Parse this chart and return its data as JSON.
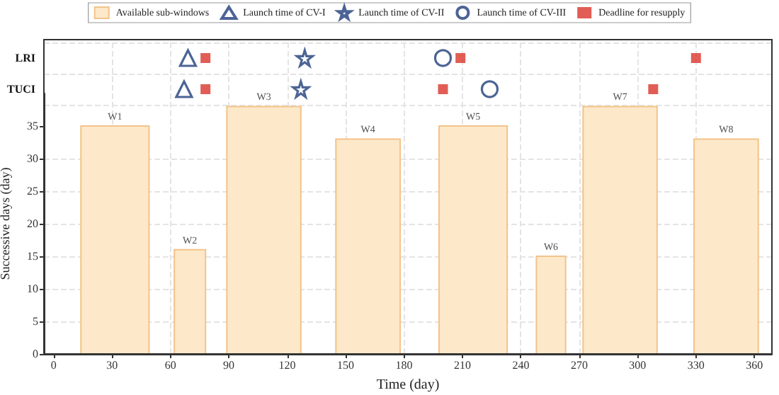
{
  "chart_data": [
    {
      "type": "scatter",
      "orientation": "horizontal",
      "categories": [
        "LRI",
        "TUCI"
      ],
      "xlim": [
        -5,
        369
      ],
      "xticks": [
        0,
        30,
        60,
        90,
        120,
        150,
        180,
        210,
        240,
        270,
        300,
        330,
        360
      ],
      "tick_labels": "y",
      "grid": true,
      "legend": "top",
      "series": [
        {
          "name": "Launch time of CV-I",
          "color": "#1f3d7a",
          "marker": "triangle",
          "values": [
            69,
            67
          ]
        },
        {
          "name": "Launch time of CV-II",
          "color": "#1f3d7a",
          "marker": "star",
          "values": [
            129,
            127
          ]
        },
        {
          "name": "Launch time of CV-III",
          "color": "#1f3d7a",
          "marker": "circle",
          "values": [
            200,
            224
          ]
        },
        {
          "name": "Deadline for resupply",
          "color": "#d9342b",
          "marker": "square",
          "values": [
            78,
            78
          ]
        },
        {
          "color": "#d9342b",
          "marker": "square",
          "values": [
            209,
            200
          ]
        },
        {
          "color": "#d9342b",
          "marker": "square",
          "values": [
            330,
            308
          ]
        }
      ]
    },
    {
      "type": "bar",
      "xlabel": "Time (day)",
      "ylabel": "Successive days (day)",
      "xlim": [
        -5,
        369
      ],
      "xticks": [
        0,
        30,
        60,
        90,
        120,
        150,
        180,
        210,
        240,
        270,
        300,
        330,
        360
      ],
      "ylim": [
        0,
        40
      ],
      "yticks": [
        0,
        5,
        10,
        15,
        20,
        25,
        30,
        35
      ],
      "grid": true,
      "series": [
        {
          "name": "Available sub-windows",
          "color": "#fde9c9",
          "x": [
            31.5,
            70,
            108,
            161.5,
            215.5,
            255.5,
            291,
            345.5
          ],
          "values": [
            35,
            16,
            38,
            33,
            35,
            15,
            38,
            33
          ],
          "value_labels": [
            "W1",
            "W2",
            "W3",
            "W4",
            "W5",
            "W6",
            "W7",
            "W8"
          ]
        }
      ]
    }
  ]
}
